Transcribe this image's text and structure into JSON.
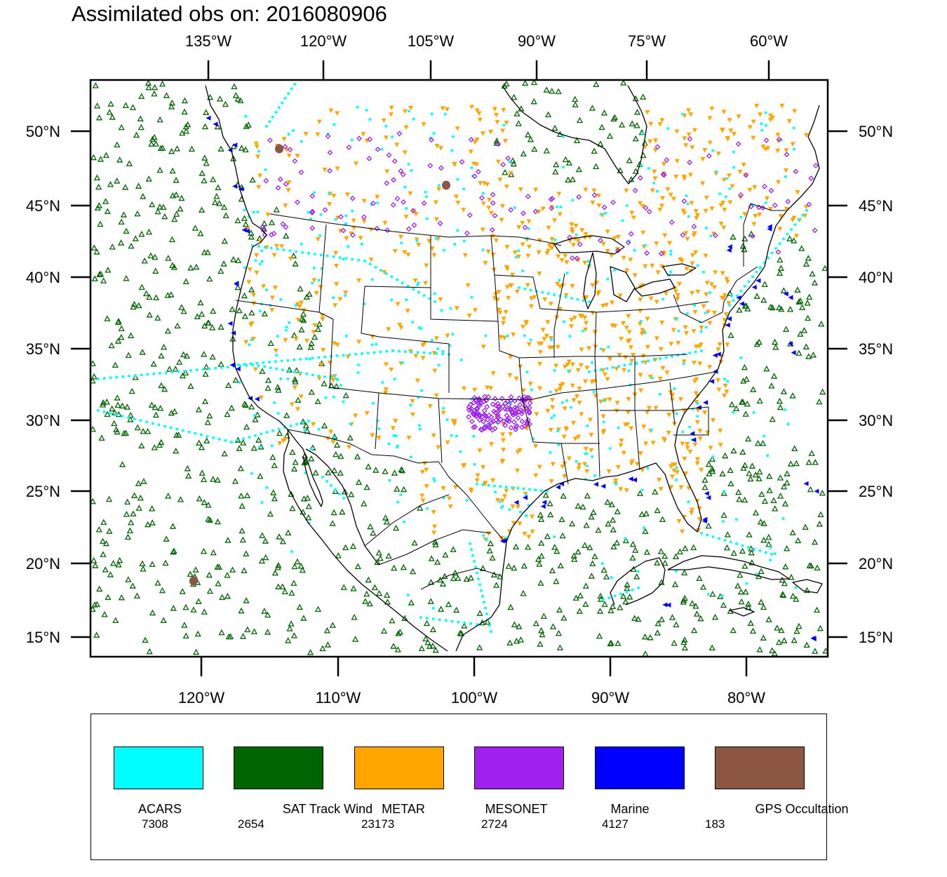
{
  "title": "Assimilated obs on: 2016080906",
  "top_axis_labels": [
    "135°W",
    "120°W",
    "105°W",
    "90°W",
    "75°W",
    "60°W"
  ],
  "bottom_axis_labels": [
    "120°W",
    "110°W",
    "100°W",
    "90°W",
    "80°W"
  ],
  "left_axis_labels": [
    "50°N",
    "45°N",
    "40°N",
    "35°N",
    "30°N",
    "25°N",
    "20°N",
    "15°N"
  ],
  "right_axis_labels": [
    "50°N",
    "45°N",
    "40°N",
    "35°N",
    "30°N",
    "25°N",
    "20°N",
    "15°N"
  ],
  "colors": {
    "acars": "#00ffff",
    "sat_track_wind": "#006400",
    "metar": "#ffa500",
    "mesonet": "#a020f0",
    "marine": "#0000ff",
    "gps_occultation": "#8b5742"
  },
  "legend": [
    {
      "label": "ACARS",
      "count": "7308",
      "color": "#00ffff"
    },
    {
      "label": "SAT Track Wind",
      "count": "2654",
      "color": "#006400"
    },
    {
      "label": "METAR",
      "count": "23173",
      "color": "#ffa500"
    },
    {
      "label": "MESONET",
      "count": "2724",
      "color": "#a020f0"
    },
    {
      "label": "Marine",
      "count": "4127",
      "color": "#0000ff"
    },
    {
      "label": "GPS Occultation",
      "count": "183",
      "color": "#8b5742"
    }
  ]
}
